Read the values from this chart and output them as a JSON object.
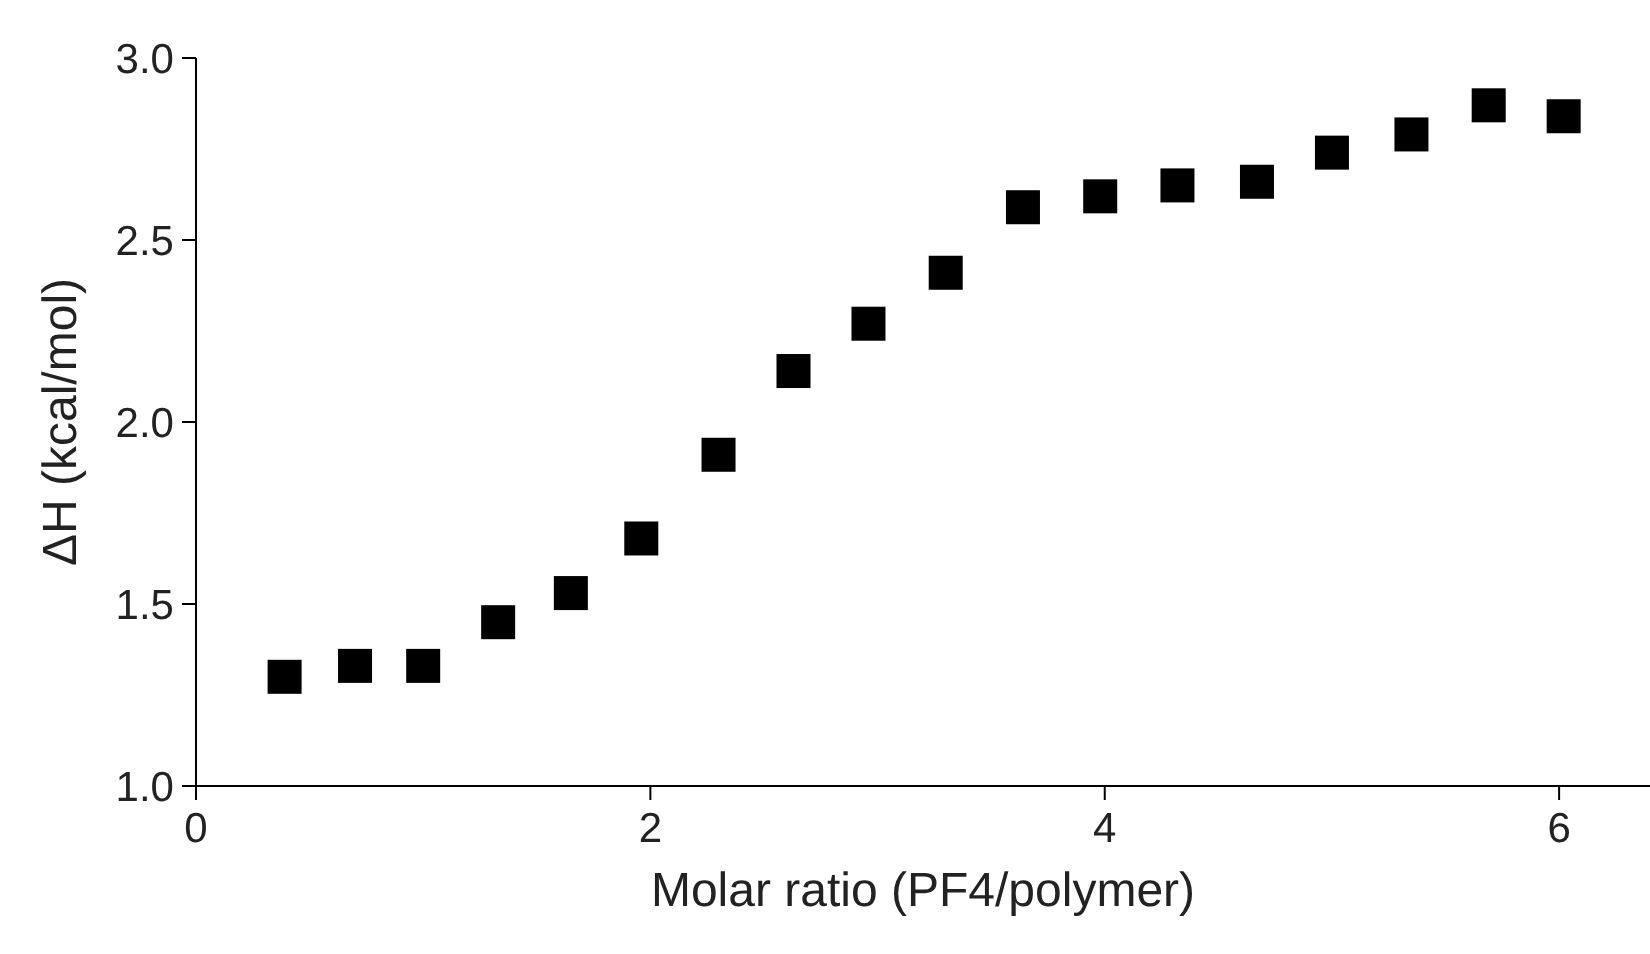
{
  "chart_data": {
    "type": "scatter",
    "xlabel": "Molar ratio (PF4/polymer)",
    "ylabel": "ΔH (kcal/mol)",
    "x": [
      0.39,
      0.7,
      1.0,
      1.33,
      1.65,
      1.96,
      2.3,
      2.63,
      2.96,
      3.3,
      3.64,
      3.98,
      4.32,
      4.67,
      5.0,
      5.35,
      5.69,
      6.02
    ],
    "series": [
      {
        "color": "#000000",
        "values": [
          1.3,
          1.33,
          1.33,
          1.45,
          1.53,
          1.68,
          1.91,
          2.14,
          2.27,
          2.41,
          2.59,
          2.62,
          2.65,
          2.66,
          2.74,
          2.79,
          2.87,
          2.84
        ]
      }
    ],
    "xlim": [
      0,
      6.4
    ],
    "xticks": [
      0,
      2,
      4,
      6
    ],
    "ylim": [
      1,
      3
    ],
    "yticks": [
      {
        "value": 1,
        "label": "1.0"
      },
      {
        "value": 1.5,
        "label": "1.5"
      },
      {
        "value": 2,
        "label": "2.0"
      },
      {
        "value": 2.5,
        "label": "2.5"
      },
      {
        "value": 3,
        "label": "3.0"
      }
    ],
    "marker": "square",
    "grid": false,
    "legend": false
  }
}
